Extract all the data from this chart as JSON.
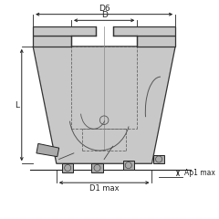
{
  "body_color": "#c8c8c8",
  "body_edge": "#333333",
  "dash_color": "#666666",
  "dim_color": "#222222",
  "insert_color": "#888888",
  "bg_color": "#ffffff",
  "labels": {
    "D6": "D6",
    "D": "D",
    "L": "L",
    "D1max": "D1 max",
    "Ap1max": "Ap1 max"
  }
}
